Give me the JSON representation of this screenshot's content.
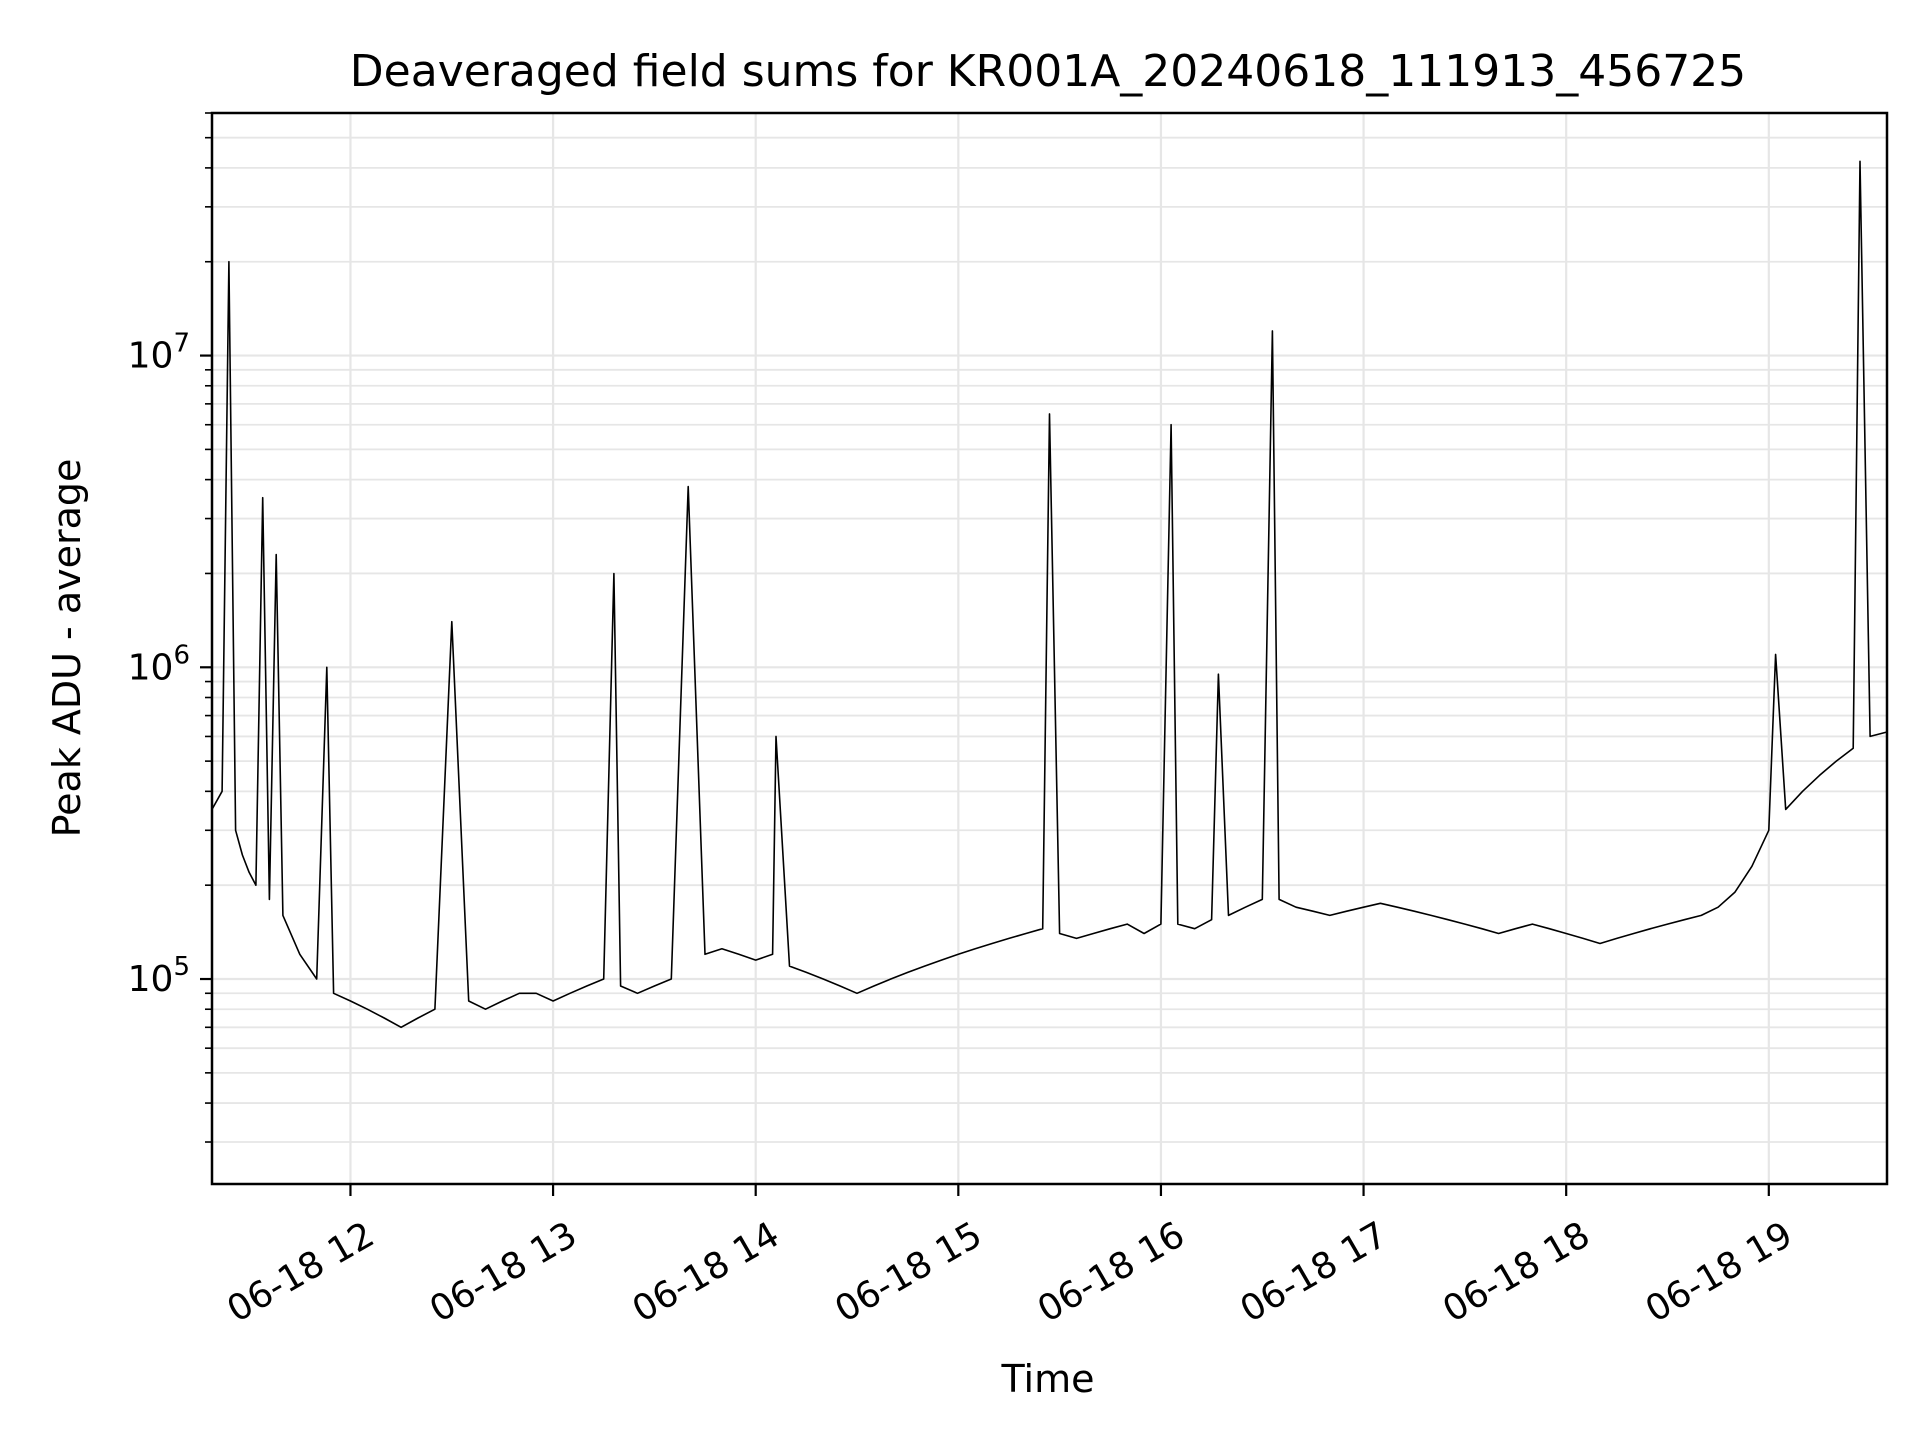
{
  "chart_data": {
    "type": "line",
    "title": "Deaveraged field sums for KR001A_20240618_111913_456725",
    "xlabel": "Time",
    "ylabel": "Peak ADU - average",
    "y_scale": "log",
    "grid": true,
    "line_color": "#000000",
    "grid_color": "#e6e6e6",
    "xlim": [
      "06-18 11:19",
      "06-18 19:35"
    ],
    "ylim": [
      22000,
      60000000
    ],
    "x_ticks": [
      {
        "value": "06-18 12:00",
        "label": "06-18 12"
      },
      {
        "value": "06-18 13:00",
        "label": "06-18 13"
      },
      {
        "value": "06-18 14:00",
        "label": "06-18 14"
      },
      {
        "value": "06-18 15:00",
        "label": "06-18 15"
      },
      {
        "value": "06-18 16:00",
        "label": "06-18 16"
      },
      {
        "value": "06-18 17:00",
        "label": "06-18 17"
      },
      {
        "value": "06-18 18:00",
        "label": "06-18 18"
      },
      {
        "value": "06-18 19:00",
        "label": "06-18 19"
      }
    ],
    "y_ticks": [
      {
        "value": 100000,
        "base": "10",
        "exp": "5"
      },
      {
        "value": 1000000,
        "base": "10",
        "exp": "6"
      },
      {
        "value": 10000000,
        "base": "10",
        "exp": "7"
      }
    ],
    "series": [
      {
        "x": [
          "06-18 11:19",
          "06-18 11:22",
          "06-18 11:24",
          "06-18 11:26",
          "06-18 11:28",
          "06-18 11:30",
          "06-18 11:32",
          "06-18 11:34",
          "06-18 11:36",
          "06-18 11:38",
          "06-18 11:40",
          "06-18 11:45",
          "06-18 11:50",
          "06-18 11:53",
          "06-18 11:55",
          "06-18 12:00",
          "06-18 12:05",
          "06-18 12:10",
          "06-18 12:15",
          "06-18 12:20",
          "06-18 12:25",
          "06-18 12:30",
          "06-18 12:35",
          "06-18 12:40",
          "06-18 12:45",
          "06-18 12:50",
          "06-18 12:55",
          "06-18 13:00",
          "06-18 13:05",
          "06-18 13:10",
          "06-18 13:15",
          "06-18 13:18",
          "06-18 13:20",
          "06-18 13:25",
          "06-18 13:30",
          "06-18 13:35",
          "06-18 13:40",
          "06-18 13:45",
          "06-18 13:50",
          "06-18 13:55",
          "06-18 14:00",
          "06-18 14:05",
          "06-18 14:06",
          "06-18 14:10",
          "06-18 14:15",
          "06-18 14:20",
          "06-18 14:25",
          "06-18 14:30",
          "06-18 14:35",
          "06-18 14:40",
          "06-18 14:45",
          "06-18 14:50",
          "06-18 14:55",
          "06-18 15:00",
          "06-18 15:05",
          "06-18 15:10",
          "06-18 15:15",
          "06-18 15:20",
          "06-18 15:25",
          "06-18 15:27",
          "06-18 15:30",
          "06-18 15:35",
          "06-18 15:40",
          "06-18 15:45",
          "06-18 15:50",
          "06-18 15:55",
          "06-18 16:00",
          "06-18 16:03",
          "06-18 16:05",
          "06-18 16:10",
          "06-18 16:15",
          "06-18 16:17",
          "06-18 16:20",
          "06-18 16:25",
          "06-18 16:30",
          "06-18 16:33",
          "06-18 16:35",
          "06-18 16:40",
          "06-18 16:45",
          "06-18 16:50",
          "06-18 16:55",
          "06-18 17:00",
          "06-18 17:05",
          "06-18 17:10",
          "06-18 17:15",
          "06-18 17:20",
          "06-18 17:25",
          "06-18 17:30",
          "06-18 17:35",
          "06-18 17:40",
          "06-18 17:45",
          "06-18 17:50",
          "06-18 17:55",
          "06-18 18:00",
          "06-18 18:05",
          "06-18 18:10",
          "06-18 18:15",
          "06-18 18:20",
          "06-18 18:25",
          "06-18 18:30",
          "06-18 18:35",
          "06-18 18:40",
          "06-18 18:45",
          "06-18 18:50",
          "06-18 18:55",
          "06-18 19:00",
          "06-18 19:02",
          "06-18 19:05",
          "06-18 19:10",
          "06-18 19:15",
          "06-18 19:20",
          "06-18 19:25",
          "06-18 19:27",
          "06-18 19:30",
          "06-18 19:35"
        ],
        "y": [
          350000,
          400000,
          20000000,
          300000,
          250000,
          220000,
          200000,
          3500000,
          180000,
          2300000,
          160000,
          120000,
          100000,
          1000000,
          90000,
          85000,
          80000,
          75000,
          70000,
          75000,
          80000,
          1400000,
          85000,
          80000,
          85000,
          90000,
          90000,
          85000,
          90000,
          95000,
          100000,
          2000000,
          95000,
          90000,
          95000,
          100000,
          3800000,
          120000,
          125000,
          120000,
          115000,
          120000,
          600000,
          110000,
          105000,
          100000,
          95000,
          90000,
          95000,
          100000,
          105000,
          110000,
          115000,
          120000,
          125000,
          130000,
          135000,
          140000,
          145000,
          6500000,
          140000,
          135000,
          140000,
          145000,
          150000,
          140000,
          150000,
          6000000,
          150000,
          145000,
          155000,
          950000,
          160000,
          170000,
          180000,
          12000000,
          180000,
          170000,
          165000,
          160000,
          165000,
          170000,
          175000,
          170000,
          165000,
          160000,
          155000,
          150000,
          145000,
          140000,
          145000,
          150000,
          145000,
          140000,
          135000,
          130000,
          135000,
          140000,
          145000,
          150000,
          155000,
          160000,
          170000,
          190000,
          230000,
          300000,
          1100000,
          350000,
          400000,
          450000,
          500000,
          550000,
          42000000,
          600000,
          620000
        ]
      }
    ]
  }
}
